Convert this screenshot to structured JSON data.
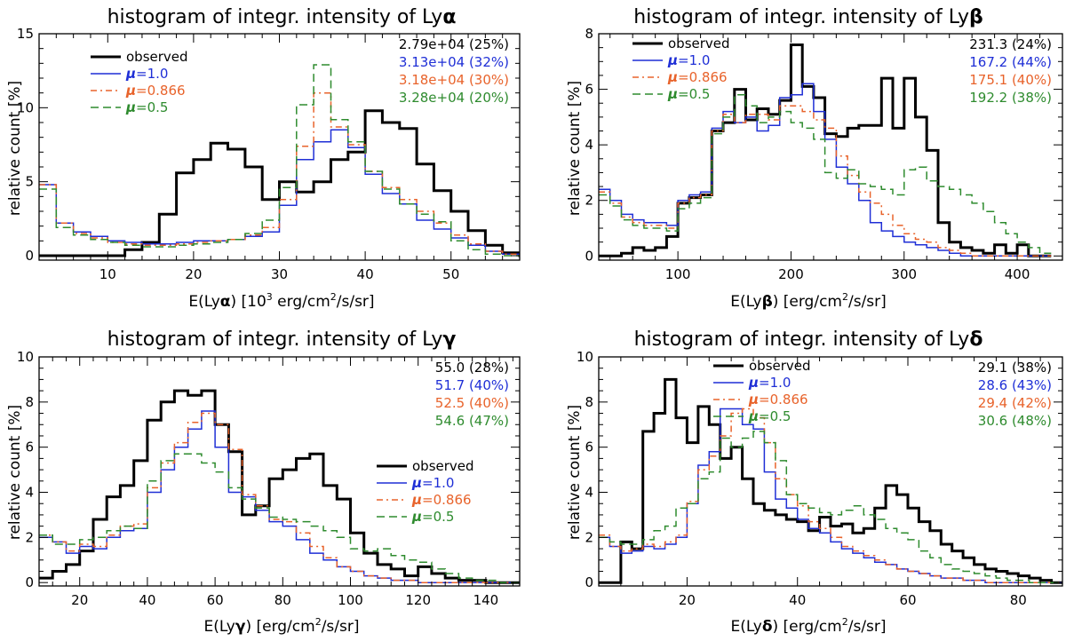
{
  "chart_data": [
    {
      "type": "histogram",
      "title_prefix": "histogram of integr. intensity of Ly",
      "title_greek": "α",
      "xlabel_prefix": "E(Ly",
      "xlabel_greek": "α",
      "xlabel_mid": ") [10",
      "xlabel_sup": "3",
      "xlabel_suffix": " erg/cm",
      "xlabel_sup2": "2",
      "xlabel_end": "/s/sr]",
      "ylabel": "relative count [%]",
      "xlim": [
        2,
        58
      ],
      "ylim": [
        -0.3,
        15
      ],
      "xticks": [
        10,
        20,
        30,
        40,
        50
      ],
      "yticks": [
        0,
        5,
        10,
        15
      ],
      "legend": "top-left",
      "stats": [
        {
          "text": "2.79e+04 (25%)",
          "color": "#000000"
        },
        {
          "text": "3.13e+04 (32%)",
          "color": "#1f2fd6"
        },
        {
          "text": "3.18e+04 (30%)",
          "color": "#e8632b"
        },
        {
          "text": "3.28e+04 (20%)",
          "color": "#2e8b2e"
        }
      ],
      "series": [
        {
          "name": "observed",
          "label": "observed",
          "color": "#000000",
          "dash": "solid",
          "width": 3,
          "x0": 2,
          "binwidth": 2,
          "values": [
            0,
            0,
            0,
            0,
            0,
            0.4,
            0.9,
            2.8,
            5.6,
            6.5,
            7.6,
            7.2,
            6.0,
            3.8,
            5.0,
            4.3,
            5.0,
            6.5,
            7.0,
            9.8,
            9.0,
            8.6,
            6.2,
            4.4,
            3.0,
            1.7,
            0.7,
            0.2,
            0
          ]
        },
        {
          "name": "mu=1.0",
          "label": "=1.0",
          "greek": "μ",
          "color": "#1f2fd6",
          "dash": "solid",
          "width": 1.5,
          "x0": 2,
          "binwidth": 2,
          "values": [
            4.8,
            2.2,
            1.6,
            1.3,
            1.0,
            0.9,
            0.8,
            0.8,
            0.9,
            1.0,
            1.0,
            1.1,
            1.3,
            1.6,
            3.4,
            6.5,
            7.7,
            8.5,
            7.3,
            5.5,
            4.2,
            3.5,
            2.4,
            1.8,
            1.2,
            0.7,
            0.3,
            0.1,
            0
          ]
        },
        {
          "name": "mu=0.866",
          "label": "=0.866",
          "greek": "μ",
          "color": "#e8632b",
          "dash": "dashdot",
          "width": 1.5,
          "x0": 2,
          "binwidth": 2,
          "values": [
            4.8,
            2.2,
            1.5,
            1.2,
            0.9,
            0.8,
            0.7,
            0.7,
            0.8,
            0.9,
            1.0,
            1.1,
            1.4,
            1.9,
            3.8,
            7.4,
            11.0,
            8.7,
            7.5,
            5.7,
            4.6,
            3.8,
            3.0,
            2.2,
            1.4,
            0.8,
            0.3,
            0.1,
            0
          ]
        },
        {
          "name": "mu=0.5",
          "label": "=0.5",
          "greek": "μ",
          "color": "#2e8b2e",
          "dash": "dashed",
          "width": 1.5,
          "x0": 2,
          "binwidth": 2,
          "values": [
            4.5,
            1.9,
            1.4,
            1.1,
            0.9,
            0.7,
            0.6,
            0.6,
            0.7,
            0.8,
            0.9,
            1.1,
            1.5,
            2.4,
            4.6,
            10.2,
            12.9,
            9.2,
            7.7,
            5.7,
            4.5,
            3.5,
            2.8,
            2.3,
            1.0,
            0.4,
            0.1,
            0,
            0
          ]
        }
      ]
    },
    {
      "type": "histogram",
      "title_prefix": "histogram of integr. intensity of Ly",
      "title_greek": "β",
      "xlabel_prefix": "E(Ly",
      "xlabel_greek": "β",
      "xlabel_mid": ") [erg/cm",
      "xlabel_sup": "2",
      "xlabel_suffix": "/s/sr]",
      "ylabel": "relative count [%]",
      "xlim": [
        30,
        440
      ],
      "ylim": [
        -0.15,
        8
      ],
      "xticks": [
        100,
        200,
        300,
        400
      ],
      "yticks": [
        0,
        2,
        4,
        6,
        8
      ],
      "legend": "top-left",
      "stats": [
        {
          "text": "231.3 (24%)",
          "color": "#000000"
        },
        {
          "text": "167.2 (44%)",
          "color": "#1f2fd6"
        },
        {
          "text": "175.1 (40%)",
          "color": "#e8632b"
        },
        {
          "text": "192.2 (38%)",
          "color": "#2e8b2e"
        }
      ],
      "series": [
        {
          "name": "observed",
          "label": "observed",
          "color": "#000000",
          "dash": "solid",
          "width": 3,
          "x0": 30,
          "binwidth": 10,
          "values": [
            0,
            0,
            0.1,
            0.3,
            0.2,
            0.3,
            0.7,
            1.9,
            2.1,
            2.2,
            4.5,
            4.8,
            6.0,
            4.9,
            5.3,
            5.1,
            5.6,
            7.6,
            6.1,
            5.7,
            4.4,
            4.3,
            4.6,
            4.7,
            4.7,
            6.4,
            4.6,
            6.4,
            5.0,
            3.8,
            1.2,
            0.5,
            0.3,
            0.2,
            0.1,
            0.4,
            0.1,
            0.4,
            0,
            0
          ]
        },
        {
          "name": "mu=1.0",
          "label": "=1.0",
          "greek": "μ",
          "color": "#1f2fd6",
          "dash": "solid",
          "width": 1.5,
          "x0": 30,
          "binwidth": 10,
          "values": [
            2.4,
            2.0,
            1.5,
            1.3,
            1.2,
            1.2,
            1.1,
            2.0,
            2.2,
            2.3,
            4.6,
            5.2,
            4.8,
            5.0,
            4.5,
            4.7,
            5.7,
            5.8,
            6.2,
            5.2,
            4.2,
            3.2,
            2.6,
            2.0,
            1.2,
            0.9,
            0.7,
            0.5,
            0.4,
            0.3,
            0.2,
            0.1,
            0,
            0,
            0,
            0,
            0,
            0,
            0,
            0
          ]
        },
        {
          "name": "mu=0.866",
          "label": "=0.866",
          "greek": "μ",
          "color": "#e8632b",
          "dash": "dashdot",
          "width": 1.5,
          "x0": 30,
          "binwidth": 10,
          "values": [
            2.3,
            1.9,
            1.4,
            1.2,
            1.1,
            1.1,
            1.0,
            1.9,
            2.1,
            2.2,
            4.5,
            5.1,
            4.8,
            5.1,
            5.1,
            4.9,
            5.4,
            5.4,
            5.2,
            4.9,
            4.6,
            3.6,
            2.9,
            2.3,
            1.9,
            1.5,
            1.1,
            0.8,
            0.6,
            0.5,
            0.3,
            0.2,
            0.1,
            0,
            0,
            0,
            0,
            0,
            0,
            0
          ]
        },
        {
          "name": "mu=0.5",
          "label": "=0.5",
          "greek": "μ",
          "color": "#2e8b2e",
          "dash": "dashed",
          "width": 1.5,
          "x0": 30,
          "binwidth": 10,
          "values": [
            2.2,
            1.8,
            1.3,
            1.1,
            1.0,
            1.0,
            0.9,
            1.7,
            1.9,
            2.1,
            4.4,
            5.0,
            5.8,
            5.4,
            4.8,
            5.0,
            5.2,
            4.8,
            4.6,
            4.2,
            3.0,
            2.8,
            3.1,
            2.6,
            2.5,
            2.4,
            2.2,
            3.1,
            3.2,
            2.7,
            2.5,
            2.4,
            2.2,
            1.9,
            1.6,
            1.2,
            0.8,
            0.5,
            0.3,
            0.1
          ]
        }
      ]
    },
    {
      "type": "histogram",
      "title_prefix": "histogram of integr. intensity of Ly",
      "title_greek": "γ",
      "xlabel_prefix": "E(Ly",
      "xlabel_greek": "γ",
      "xlabel_mid": ") [erg/cm",
      "xlabel_sup": "2",
      "xlabel_suffix": "/s/sr]",
      "ylabel": "relative count [%]",
      "xlim": [
        8,
        150
      ],
      "ylim": [
        -0.15,
        10
      ],
      "xticks": [
        20,
        40,
        60,
        80,
        100,
        120,
        140
      ],
      "yticks": [
        0,
        2,
        4,
        6,
        8,
        10
      ],
      "legend": "bottom-right",
      "stats": [
        {
          "text": "55.0 (28%)",
          "color": "#000000"
        },
        {
          "text": "51.7 (40%)",
          "color": "#1f2fd6"
        },
        {
          "text": "52.5 (40%)",
          "color": "#e8632b"
        },
        {
          "text": "54.6 (47%)",
          "color": "#2e8b2e"
        }
      ],
      "series": [
        {
          "name": "observed",
          "label": "observed",
          "color": "#000000",
          "dash": "solid",
          "width": 3,
          "x0": 8,
          "binwidth": 4,
          "values": [
            0.2,
            0.5,
            0.8,
            1.4,
            2.8,
            3.8,
            4.3,
            5.4,
            7.2,
            8.0,
            8.5,
            8.3,
            8.5,
            7.0,
            5.8,
            3.0,
            3.4,
            4.6,
            5.0,
            5.5,
            5.7,
            4.3,
            3.7,
            2.2,
            1.3,
            0.8,
            0.6,
            0.3,
            0.7,
            0.4,
            0.2,
            0.1,
            0.1,
            0,
            0,
            0
          ]
        },
        {
          "name": "mu=1.0",
          "label": "=1.0",
          "greek": "μ",
          "color": "#1f2fd6",
          "dash": "solid",
          "width": 1.5,
          "x0": 8,
          "binwidth": 4,
          "values": [
            2.0,
            1.8,
            1.3,
            1.6,
            1.5,
            2.0,
            2.3,
            2.4,
            4.0,
            5.0,
            6.0,
            6.8,
            7.6,
            6.0,
            4.0,
            3.8,
            3.2,
            2.7,
            2.5,
            1.9,
            1.3,
            1.0,
            0.7,
            0.5,
            0.3,
            0.2,
            0.1,
            0.1,
            0,
            0,
            0,
            0,
            0,
            0,
            0,
            0
          ]
        },
        {
          "name": "mu=0.866",
          "label": "=0.866",
          "greek": "μ",
          "color": "#e8632b",
          "dash": "dashdot",
          "width": 1.5,
          "x0": 8,
          "binwidth": 4,
          "values": [
            2.1,
            1.8,
            1.4,
            1.7,
            1.6,
            2.1,
            2.5,
            2.6,
            4.2,
            5.3,
            6.2,
            7.1,
            7.5,
            7.0,
            5.9,
            3.9,
            3.4,
            2.8,
            2.7,
            2.2,
            1.6,
            1.1,
            0.7,
            0.5,
            0.3,
            0.2,
            0.1,
            0.1,
            0,
            0,
            0,
            0,
            0,
            0,
            0,
            0
          ]
        },
        {
          "name": "mu=0.5",
          "label": "=0.5",
          "greek": "μ",
          "color": "#2e8b2e",
          "dash": "dashed",
          "width": 1.5,
          "x0": 8,
          "binwidth": 4,
          "values": [
            2.1,
            1.7,
            1.7,
            1.9,
            2.0,
            2.3,
            2.5,
            2.4,
            4.5,
            5.4,
            5.7,
            5.7,
            5.3,
            4.9,
            4.2,
            3.7,
            3.3,
            2.9,
            2.8,
            2.7,
            2.5,
            2.3,
            2.0,
            1.5,
            1.4,
            1.5,
            1.2,
            1.0,
            0.9,
            0.6,
            0.4,
            0.2,
            0.1,
            0.1,
            0,
            0
          ]
        }
      ]
    },
    {
      "type": "histogram",
      "title_prefix": "histogram of integr. intensity of Ly",
      "title_greek": "δ",
      "xlabel_prefix": "E(Ly",
      "xlabel_greek": "δ",
      "xlabel_mid": ") [erg/cm",
      "xlabel_sup": "2",
      "xlabel_suffix": "/s/sr]",
      "ylabel": "relative count [%]",
      "xlim": [
        4,
        88
      ],
      "ylim": [
        -0.15,
        10
      ],
      "xticks": [
        20,
        40,
        60,
        80
      ],
      "yticks": [
        0,
        2,
        4,
        6,
        8,
        10
      ],
      "legend": "top-center",
      "stats": [
        {
          "text": "29.1 (38%)",
          "color": "#000000"
        },
        {
          "text": "28.6 (43%)",
          "color": "#1f2fd6"
        },
        {
          "text": "29.4 (42%)",
          "color": "#e8632b"
        },
        {
          "text": "30.6 (48%)",
          "color": "#2e8b2e"
        }
      ],
      "series": [
        {
          "name": "observed",
          "label": "observed",
          "color": "#000000",
          "dash": "solid",
          "width": 3,
          "x0": 4,
          "binwidth": 2,
          "values": [
            0,
            0,
            1.8,
            1.5,
            6.7,
            7.5,
            9.0,
            7.3,
            6.2,
            7.8,
            7.0,
            5.5,
            6.0,
            4.6,
            3.5,
            3.2,
            3.0,
            2.8,
            2.7,
            2.3,
            2.9,
            2.5,
            2.6,
            2.2,
            2.4,
            3.3,
            4.3,
            3.9,
            3.3,
            2.7,
            2.3,
            1.7,
            1.4,
            1.1,
            0.8,
            0.6,
            0.5,
            0.4,
            0.3,
            0.2,
            0.1,
            0
          ]
        },
        {
          "name": "mu=1.0",
          "label": "=1.0",
          "greek": "μ",
          "color": "#1f2fd6",
          "dash": "solid",
          "width": 1.5,
          "x0": 4,
          "binwidth": 2,
          "values": [
            2.0,
            1.6,
            1.3,
            1.4,
            1.6,
            1.5,
            1.7,
            2.0,
            3.5,
            5.2,
            5.8,
            7.7,
            7.7,
            7.0,
            6.8,
            4.9,
            3.7,
            3.3,
            2.8,
            2.4,
            2.2,
            1.8,
            1.5,
            1.3,
            1.1,
            0.9,
            0.8,
            0.6,
            0.5,
            0.4,
            0.3,
            0.2,
            0.2,
            0.1,
            0.1,
            0,
            0,
            0,
            0,
            0,
            0,
            0
          ]
        },
        {
          "name": "mu=0.866",
          "label": "=0.866",
          "greek": "μ",
          "color": "#e8632b",
          "dash": "dashdot",
          "width": 1.5,
          "x0": 4,
          "binwidth": 2,
          "values": [
            2.1,
            1.6,
            1.4,
            1.5,
            1.7,
            1.6,
            1.8,
            2.1,
            3.6,
            5.0,
            5.6,
            6.5,
            7.5,
            7.7,
            7.3,
            6.2,
            4.6,
            3.9,
            3.4,
            2.7,
            2.4,
            2.0,
            1.6,
            1.4,
            1.2,
            1.0,
            0.8,
            0.6,
            0.5,
            0.4,
            0.3,
            0.2,
            0.2,
            0.1,
            0.1,
            0,
            0,
            0,
            0,
            0,
            0,
            0
          ]
        },
        {
          "name": "mu=0.5",
          "label": "=0.5",
          "greek": "μ",
          "color": "#2e8b2e",
          "dash": "dashed",
          "width": 1.5,
          "x0": 4,
          "binwidth": 2,
          "values": [
            2.0,
            1.8,
            1.7,
            1.7,
            1.9,
            2.3,
            2.5,
            3.3,
            3.5,
            4.6,
            4.9,
            6.4,
            6.0,
            6.4,
            6.7,
            6.2,
            5.4,
            3.9,
            3.5,
            3.3,
            3.1,
            3.0,
            3.2,
            3.4,
            3.0,
            2.8,
            2.4,
            2.2,
            1.9,
            1.4,
            1.1,
            0.8,
            0.6,
            0.5,
            0.4,
            0.3,
            0.2,
            0.1,
            0.1,
            0,
            0,
            0
          ]
        }
      ]
    }
  ]
}
